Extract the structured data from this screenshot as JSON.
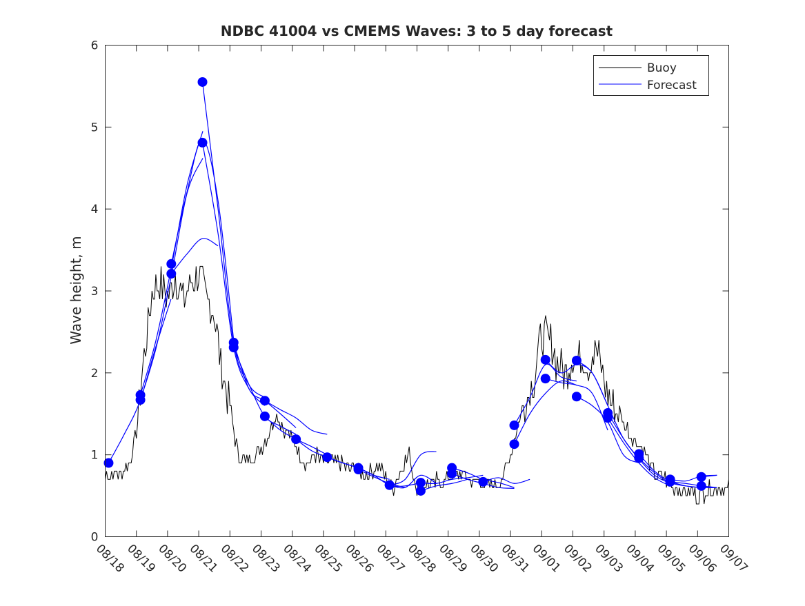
{
  "chart_data": {
    "type": "line",
    "title": "NDBC 41004 vs CMEMS Waves: 3 to 5 day forecast",
    "xlabel": "",
    "ylabel": "Wave height, m",
    "xlim": [
      0,
      20
    ],
    "ylim": [
      0,
      6
    ],
    "x_units": "days since 08/18",
    "x_tick_labels": [
      "08/18",
      "08/19",
      "08/20",
      "08/21",
      "08/22",
      "08/23",
      "08/24",
      "08/25",
      "08/26",
      "08/27",
      "08/28",
      "08/29",
      "08/30",
      "08/31",
      "09/01",
      "09/02",
      "09/03",
      "09/04",
      "09/05",
      "09/06",
      "09/07"
    ],
    "y_ticks": [
      0,
      1,
      2,
      3,
      4,
      5,
      6
    ],
    "grid": false,
    "legend": {
      "placement": "top-right",
      "entries": [
        "Buoy",
        "Forecast"
      ]
    },
    "colors": {
      "buoy": "#000000",
      "forecast": "#0000ff",
      "marker": "#0000ff"
    },
    "buoy": {
      "x_step_days": 0.25,
      "values": [
        0.75,
        0.75,
        0.8,
        0.85,
        1.3,
        2.2,
        3.0,
        3.1,
        2.9,
        3.2,
        2.9,
        3.1,
        3.2,
        2.9,
        2.7,
        2.0,
        1.6,
        1.0,
        0.9,
        1.0,
        1.1,
        1.3,
        1.5,
        1.3,
        1.2,
        1.0,
        0.9,
        1.0,
        0.9,
        0.95,
        0.9,
        0.8,
        0.85,
        0.75,
        0.8,
        0.9,
        0.7,
        0.6,
        0.85,
        1.0,
        0.6,
        0.65,
        0.65,
        0.7,
        0.7,
        0.75,
        0.75,
        0.7,
        0.65,
        0.6,
        0.65,
        0.7,
        1.0,
        1.4,
        1.7,
        1.9,
        2.5,
        2.4,
        2.1,
        2.0,
        2.2,
        2.2,
        2.1,
        2.3,
        1.9,
        1.6,
        1.5,
        1.3,
        1.2,
        1.1,
        0.8,
        0.75,
        0.7,
        0.6,
        0.55,
        0.55,
        0.5,
        0.55,
        0.6,
        0.6,
        0.6
      ]
    },
    "forecast_runs": {
      "x_step_days": 0.5,
      "runs": [
        {
          "start": 0.11,
          "values": [
            0.9,
            1.25,
            1.65,
            2.3,
            2.9
          ]
        },
        {
          "start": 1.13,
          "values": [
            1.73,
            2.4,
            3.3,
            4.3,
            4.95
          ]
        },
        {
          "start": 1.13,
          "values": [
            1.67,
            2.3,
            3.2,
            4.2,
            4.62
          ]
        },
        {
          "start": 2.12,
          "values": [
            3.33,
            4.2,
            4.85,
            4.1,
            2.4
          ]
        },
        {
          "start": 2.12,
          "values": [
            3.21,
            3.45,
            3.64,
            3.55
          ]
        },
        {
          "start": 3.12,
          "values": [
            5.55,
            4.0,
            2.37,
            1.85,
            1.7
          ]
        },
        {
          "start": 3.12,
          "values": [
            4.81,
            3.7,
            2.31,
            1.8,
            1.6
          ]
        },
        {
          "start": 4.12,
          "values": [
            2.37,
            1.8,
            1.66,
            1.5,
            1.33
          ]
        },
        {
          "start": 4.12,
          "values": [
            2.31,
            1.85,
            1.47,
            1.35,
            1.25
          ]
        },
        {
          "start": 5.12,
          "values": [
            1.66,
            1.55,
            1.45,
            1.3,
            1.25
          ]
        },
        {
          "start": 5.12,
          "values": [
            1.47,
            1.3,
            1.19,
            1.1,
            1.0
          ]
        },
        {
          "start": 6.12,
          "values": [
            1.19,
            1.05,
            0.97,
            0.9,
            0.84
          ]
        },
        {
          "start": 7.12,
          "values": [
            0.97,
            0.9,
            0.84,
            0.75,
            0.7
          ]
        },
        {
          "start": 8.12,
          "values": [
            0.84,
            0.75,
            0.63,
            0.62,
            0.66
          ]
        },
        {
          "start": 8.12,
          "values": [
            0.82,
            0.73,
            0.65,
            0.6
          ]
        },
        {
          "start": 9.12,
          "values": [
            0.63,
            0.7,
            1.0,
            1.04
          ]
        },
        {
          "start": 9.12,
          "values": [
            0.63,
            0.6,
            0.75,
            0.65
          ]
        },
        {
          "start": 10.12,
          "values": [
            0.66,
            0.65,
            0.7,
            0.72,
            0.75
          ]
        },
        {
          "start": 10.12,
          "values": [
            0.56,
            0.62,
            0.65,
            0.7
          ]
        },
        {
          "start": 11.12,
          "values": [
            0.84,
            0.78,
            0.7,
            0.66,
            0.6
          ]
        },
        {
          "start": 11.12,
          "values": [
            0.77,
            0.7,
            0.65,
            0.6,
            0.59
          ]
        },
        {
          "start": 12.12,
          "values": [
            0.67,
            0.72,
            0.65,
            0.7
          ]
        },
        {
          "start": 13.12,
          "values": [
            1.36,
            1.7,
            2.1,
            1.95,
            1.9
          ]
        },
        {
          "start": 13.12,
          "values": [
            1.13,
            1.5,
            1.75,
            1.9,
            1.85
          ]
        },
        {
          "start": 14.12,
          "values": [
            2.16,
            2.0,
            2.1,
            2.0,
            1.6
          ]
        },
        {
          "start": 14.12,
          "values": [
            1.93,
            1.88,
            1.85,
            1.75,
            1.3
          ]
        },
        {
          "start": 15.12,
          "values": [
            2.15,
            2.0,
            1.6,
            1.2,
            0.95
          ]
        },
        {
          "start": 15.12,
          "values": [
            1.71,
            1.6,
            1.4,
            1.0,
            0.9
          ]
        },
        {
          "start": 16.12,
          "values": [
            1.51,
            1.2,
            0.95,
            0.75,
            0.65
          ]
        },
        {
          "start": 16.12,
          "values": [
            1.45,
            1.15,
            0.9,
            0.72,
            0.62
          ]
        },
        {
          "start": 17.12,
          "values": [
            1.01,
            0.8,
            0.68,
            0.65,
            0.62
          ]
        },
        {
          "start": 17.12,
          "values": [
            0.96,
            0.78,
            0.66,
            0.62,
            0.6
          ]
        },
        {
          "start": 18.12,
          "values": [
            0.7,
            0.68,
            0.74,
            0.75
          ]
        },
        {
          "start": 18.12,
          "values": [
            0.67,
            0.62,
            0.6,
            0.6
          ]
        },
        {
          "start": 19.12,
          "values": [
            0.73,
            0.75
          ]
        },
        {
          "start": 19.12,
          "values": [
            0.62,
            0.6
          ]
        }
      ]
    }
  }
}
